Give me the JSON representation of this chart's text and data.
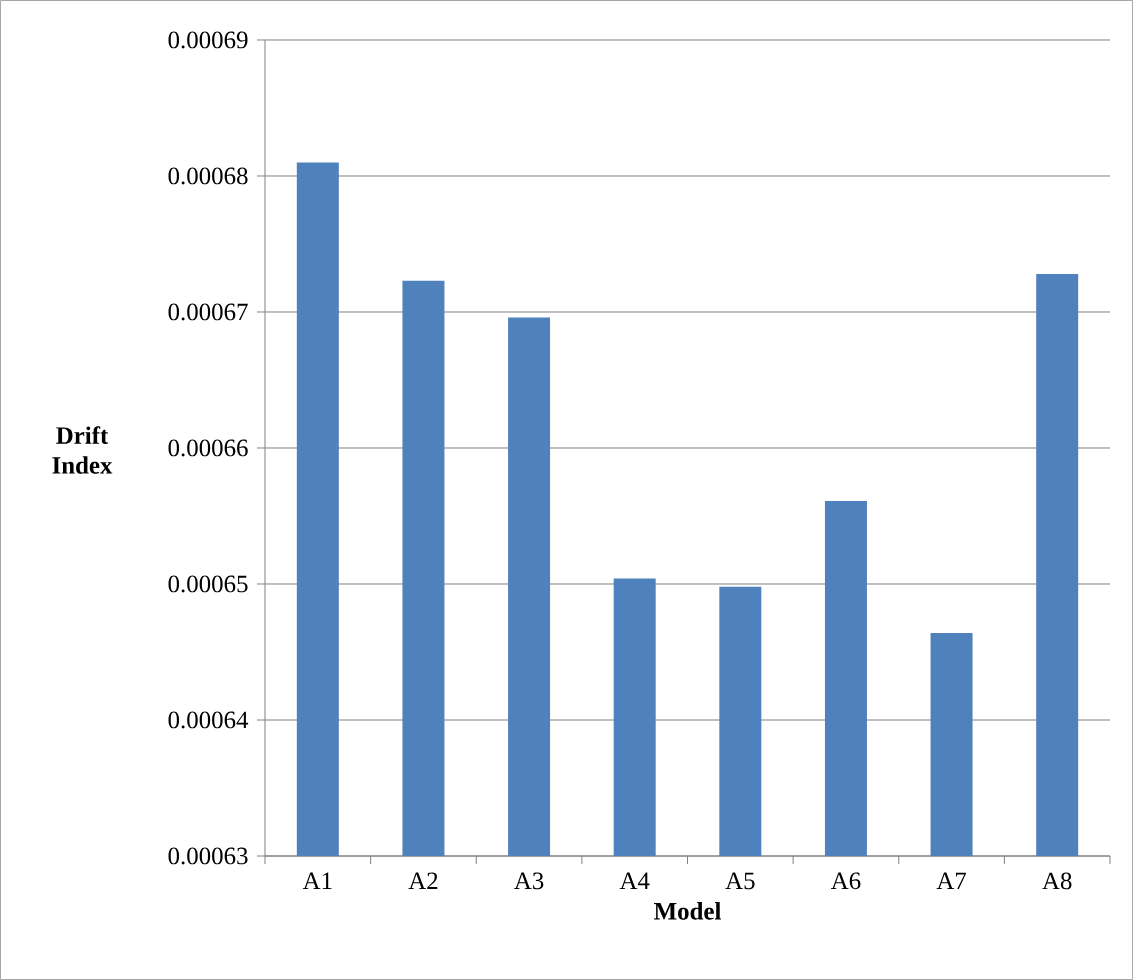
{
  "chart_data": {
    "type": "bar",
    "xlabel": "Model",
    "ylabel": "Drift Index",
    "categories": [
      "A1",
      "A2",
      "A3",
      "A4",
      "A5",
      "A6",
      "A7",
      "A8"
    ],
    "values": [
      0.000681,
      0.0006723,
      0.0006696,
      0.0006504,
      0.0006498,
      0.0006561,
      0.0006464,
      0.0006728
    ],
    "color": "#4f81bd",
    "ylim": [
      0.00063,
      0.00069
    ],
    "yticks": [
      0.00063,
      0.00064,
      0.00065,
      0.00066,
      0.00067,
      0.00068,
      0.00069
    ],
    "grid": "y"
  }
}
